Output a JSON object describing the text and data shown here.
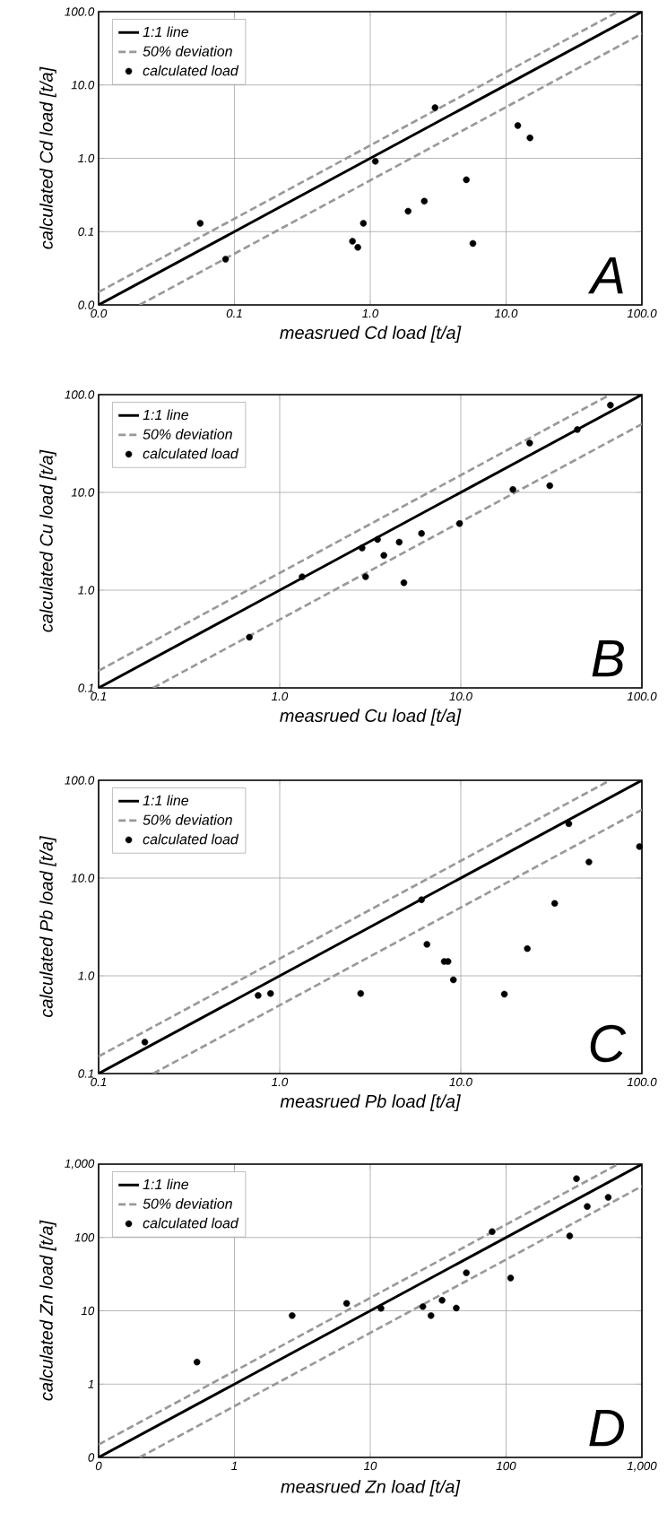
{
  "chart_data": [
    {
      "type": "scatter",
      "xlabel": "measrued Cd load [t/a]",
      "ylabel": "calculated Cd load [t/a]",
      "log": "xy",
      "grid": true,
      "legend": "top left",
      "xlim": [
        0.01,
        100
      ],
      "ylim": [
        0.01,
        100
      ],
      "xticks": [
        {
          "value": 0.01,
          "label": "0.0"
        },
        {
          "value": 0.1,
          "label": "0.1"
        },
        {
          "value": 1,
          "label": "1.0"
        },
        {
          "value": 10,
          "label": "10.0"
        },
        {
          "value": 100,
          "label": "100.0"
        }
      ],
      "yticks": [
        {
          "value": 0.01,
          "label": "0.0"
        },
        {
          "value": 0.1,
          "label": "0.1"
        },
        {
          "value": 1,
          "label": "1.0"
        },
        {
          "value": 10,
          "label": "10.0"
        },
        {
          "value": 100,
          "label": "100.0"
        }
      ],
      "annotations": [
        "A"
      ],
      "series": [
        {
          "name": "1:1 line",
          "type": "line",
          "color": "#000000",
          "line_style": "solid",
          "marker": "none",
          "x": [
            0.01,
            100
          ],
          "values": [
            0.01,
            100
          ]
        },
        {
          "name": "50% deviation",
          "type": "line",
          "color": "#999999",
          "line_style": "dashed",
          "marker": "none",
          "x": [
            0.01,
            66.7
          ],
          "values": [
            0.015,
            100
          ]
        },
        {
          "type": "line",
          "color": "#999999",
          "line_style": "dashed",
          "marker": "none",
          "x": [
            0.02,
            100
          ],
          "values": [
            0.01,
            50
          ]
        },
        {
          "name": "calculated load",
          "color": "#000000",
          "marker": "circle",
          "x": [
            0.056,
            0.086,
            0.74,
            0.81,
            0.89,
            1.09,
            1.9,
            2.5,
            3.0,
            5.1,
            5.7,
            12.2,
            15
          ],
          "values": [
            0.13,
            0.042,
            0.074,
            0.061,
            0.13,
            0.91,
            0.19,
            0.26,
            4.9,
            0.51,
            0.069,
            2.8,
            1.9
          ]
        }
      ]
    },
    {
      "type": "scatter",
      "xlabel": "measrued Cu load [t/a]",
      "ylabel": "calculated Cu load [t/a]",
      "log": "xy",
      "grid": true,
      "legend": "top left",
      "xlim": [
        0.1,
        100
      ],
      "ylim": [
        0.1,
        100
      ],
      "xticks": [
        {
          "value": 0.1,
          "label": "0.1"
        },
        {
          "value": 1,
          "label": "1.0"
        },
        {
          "value": 10,
          "label": "10.0"
        },
        {
          "value": 100,
          "label": "100.0"
        }
      ],
      "yticks": [
        {
          "value": 0.1,
          "label": "0.1"
        },
        {
          "value": 1,
          "label": "1.0"
        },
        {
          "value": 10,
          "label": "10.0"
        },
        {
          "value": 100,
          "label": "100.0"
        }
      ],
      "annotations": [
        "B"
      ],
      "series": [
        {
          "name": "1:1 line",
          "type": "line",
          "color": "#000000",
          "line_style": "solid",
          "marker": "none",
          "x": [
            0.1,
            100
          ],
          "values": [
            0.1,
            100
          ]
        },
        {
          "name": "50% deviation",
          "type": "line",
          "color": "#999999",
          "line_style": "dashed",
          "marker": "none",
          "x": [
            0.1,
            66.7
          ],
          "values": [
            0.15,
            100
          ]
        },
        {
          "type": "line",
          "color": "#999999",
          "line_style": "dashed",
          "marker": "none",
          "x": [
            0.2,
            100
          ],
          "values": [
            0.1,
            50
          ]
        },
        {
          "name": "calculated load",
          "color": "#000000",
          "marker": "circle",
          "x": [
            0.68,
            1.33,
            2.85,
            2.98,
            3.47,
            3.76,
            4.57,
            4.85,
            6.07,
            9.84,
            19.4,
            24,
            31,
            44,
            67
          ],
          "values": [
            0.33,
            1.37,
            2.7,
            1.37,
            3.3,
            2.27,
            3.1,
            1.19,
            3.8,
            4.8,
            10.7,
            32,
            11.7,
            44,
            78
          ]
        }
      ]
    },
    {
      "type": "scatter",
      "xlabel": "measrued Pb load [t/a]",
      "ylabel": "calculated Pb load [t/a]",
      "log": "xy",
      "grid": true,
      "legend": "top left",
      "xlim": [
        0.1,
        100
      ],
      "ylim": [
        0.1,
        100
      ],
      "xticks": [
        {
          "value": 0.1,
          "label": "0.1"
        },
        {
          "value": 1,
          "label": "1.0"
        },
        {
          "value": 10,
          "label": "10.0"
        },
        {
          "value": 100,
          "label": "100.0"
        }
      ],
      "yticks": [
        {
          "value": 0.1,
          "label": "0.1"
        },
        {
          "value": 1,
          "label": "1.0"
        },
        {
          "value": 10,
          "label": "10.0"
        },
        {
          "value": 100,
          "label": "100.0"
        }
      ],
      "annotations": [
        "C"
      ],
      "series": [
        {
          "name": "1:1 line",
          "type": "line",
          "color": "#000000",
          "line_style": "solid",
          "marker": "none",
          "x": [
            0.1,
            100
          ],
          "values": [
            0.1,
            100
          ]
        },
        {
          "name": "50% deviation",
          "type": "line",
          "color": "#999999",
          "line_style": "dashed",
          "marker": "none",
          "x": [
            0.1,
            66.7
          ],
          "values": [
            0.15,
            100
          ]
        },
        {
          "type": "line",
          "color": "#999999",
          "line_style": "dashed",
          "marker": "none",
          "x": [
            0.2,
            100
          ],
          "values": [
            0.1,
            50
          ]
        },
        {
          "name": "calculated load",
          "color": "#000000",
          "marker": "circle",
          "x": [
            0.18,
            0.76,
            0.89,
            2.8,
            6.07,
            6.5,
            8.1,
            8.5,
            9.1,
            17.4,
            23.3,
            33,
            39.5,
            51,
            97
          ],
          "values": [
            0.21,
            0.63,
            0.66,
            0.66,
            6.0,
            2.1,
            1.4,
            1.4,
            0.91,
            0.65,
            1.9,
            5.5,
            36,
            14.6,
            21
          ]
        }
      ]
    },
    {
      "type": "scatter",
      "xlabel": "measrued Zn load [t/a]",
      "ylabel": "calculated Zn load [t/a]",
      "log": "xy",
      "grid": true,
      "legend": "top left",
      "xlim": [
        0.1,
        1000
      ],
      "ylim": [
        0.1,
        1000
      ],
      "xticks": [
        {
          "value": 0.1,
          "label": "0"
        },
        1,
        10,
        100,
        {
          "value": 1000,
          "label": "1,000"
        }
      ],
      "yticks": [
        {
          "value": 0.1,
          "label": "0"
        },
        1,
        10,
        100,
        {
          "value": 1000,
          "label": "1,000"
        }
      ],
      "annotations": [
        "D"
      ],
      "series": [
        {
          "name": "1:1 line",
          "type": "line",
          "color": "#000000",
          "line_style": "solid",
          "marker": "none",
          "x": [
            0.1,
            1000
          ],
          "values": [
            0.1,
            1000
          ]
        },
        {
          "name": "50% deviation",
          "type": "line",
          "color": "#999999",
          "line_style": "dashed",
          "marker": "none",
          "x": [
            0.1,
            667
          ],
          "values": [
            0.15,
            1000
          ]
        },
        {
          "type": "line",
          "color": "#999999",
          "line_style": "dashed",
          "marker": "none",
          "x": [
            0.2,
            1000
          ],
          "values": [
            0.1,
            500
          ]
        },
        {
          "name": "calculated load",
          "color": "#000000",
          "marker": "circle",
          "x": [
            0.53,
            2.66,
            6.7,
            12,
            24.4,
            28,
            33.8,
            43,
            51,
            79,
            108,
            294,
            330,
            396,
            565
          ],
          "values": [
            2.0,
            8.6,
            12.6,
            10.8,
            11.4,
            8.6,
            13.9,
            10.9,
            33,
            120,
            28,
            105,
            634,
            265,
            352
          ]
        }
      ]
    }
  ]
}
